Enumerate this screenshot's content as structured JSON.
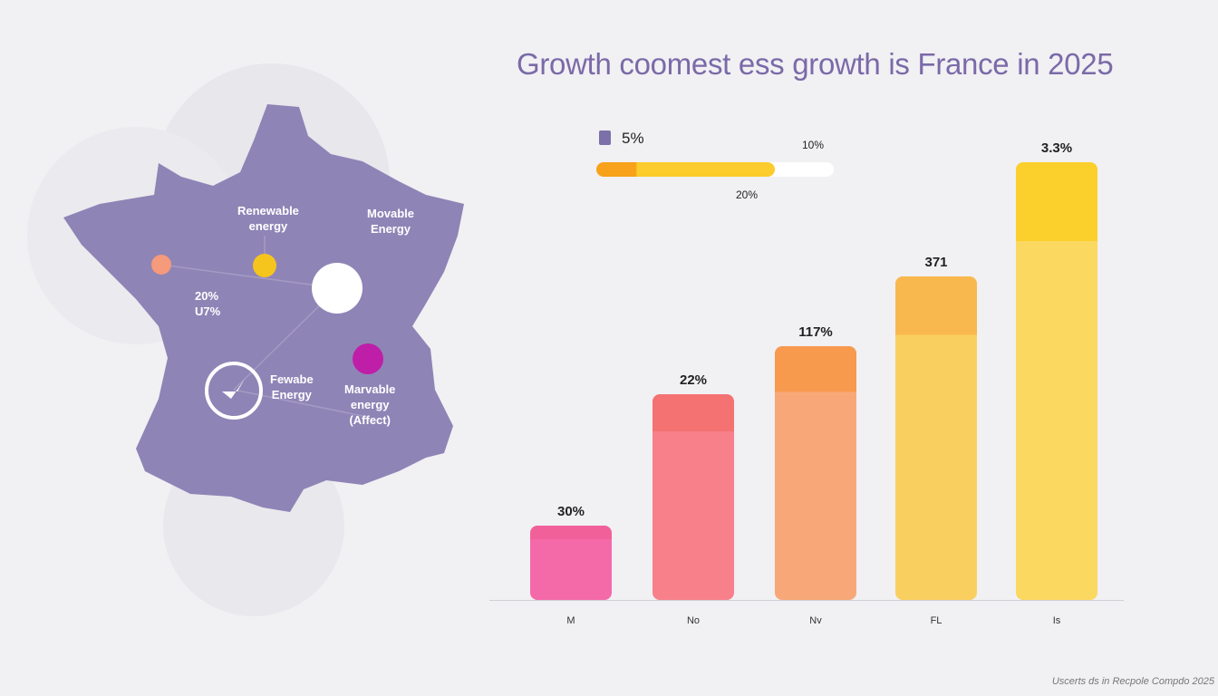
{
  "title": "Growth coomest ess growth is France in 2025",
  "footer": "Uscerts ds in Recpole Compdo 2025",
  "legend": {
    "swatch_color": "#7b70a8",
    "label": "5%"
  },
  "progress": {
    "label_top": "10%",
    "label_bottom": "20%",
    "fill_fraction": 0.75,
    "colors": [
      "#f7a21a",
      "#fbcc2c"
    ]
  },
  "map": {
    "color": "#8f84b6",
    "labels": {
      "renewable": [
        "Renewable",
        "energy"
      ],
      "movable": [
        "Movable",
        "Energy"
      ],
      "percent": [
        "20%",
        "U7%"
      ],
      "fewable": [
        "Fewabe",
        "Energy"
      ],
      "marvable": [
        "Marvable",
        "energy",
        "(Affect)"
      ]
    },
    "markers": [
      {
        "name": "orange-dot",
        "color": "#f59a7a"
      },
      {
        "name": "yellow-dot",
        "color": "#f6c51d"
      },
      {
        "name": "white-dot",
        "color": "#ffffff"
      },
      {
        "name": "magenta-dot",
        "color": "#bf1ea8"
      }
    ],
    "icon": "rocket-badge-icon"
  },
  "chart_data": {
    "type": "bar",
    "title": "Growth coomest ess growth is France in 2025",
    "categories": [
      "M",
      "No",
      "Nv",
      "FL",
      "Is"
    ],
    "data_labels": [
      "30%",
      "22%",
      "117%",
      "371",
      "3.3%"
    ],
    "relative_heights": [
      0.17,
      0.47,
      0.58,
      0.74,
      1.0
    ],
    "colors": [
      [
        "#f2609a",
        "#f46aa8"
      ],
      [
        "#f47272",
        "#f7808a"
      ],
      [
        "#f79a4e",
        "#f8a878"
      ],
      [
        "#f9b84e",
        "#f9d060"
      ],
      [
        "#fbcf2c",
        "#fbd860"
      ]
    ],
    "grid": false,
    "legend": "none"
  }
}
